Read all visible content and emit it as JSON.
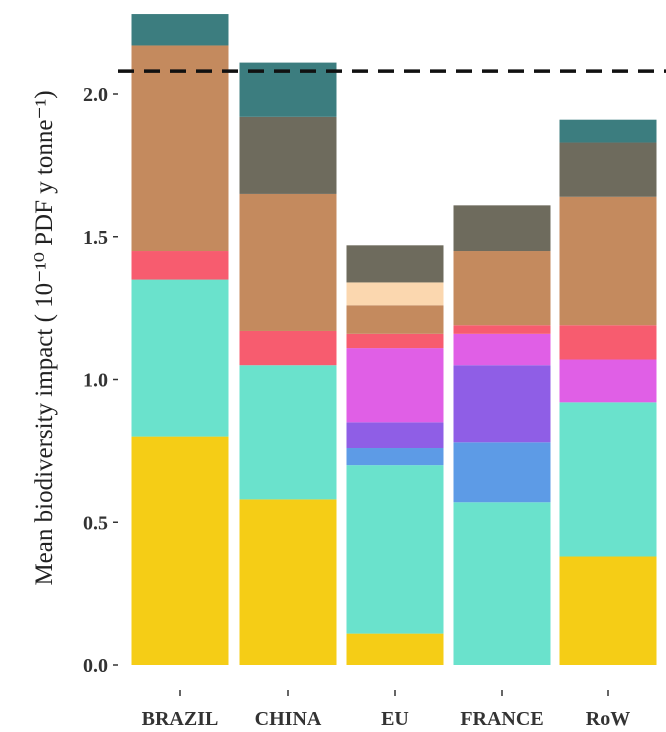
{
  "chart_data": {
    "type": "bar",
    "stacked": true,
    "categories": [
      "BRAZIL",
      "CHINA",
      "EU",
      "FRANCE",
      "RoW"
    ],
    "ylabel": "Mean biodiversity impact ( 10⁻¹⁰ PDF y tonne⁻¹)",
    "ylim": [
      0,
      2.3
    ],
    "yticks": [
      "0.0",
      "0.5",
      "1.0",
      "1.5",
      "2.0"
    ],
    "yticks_values": [
      0,
      0.5,
      1.0,
      1.5,
      2.0
    ],
    "reference_line": {
      "value": 2.08,
      "style": "dashed"
    },
    "legend": "none",
    "grid": false,
    "series": [
      {
        "color": "#f5cd16",
        "values": [
          0.8,
          0.58,
          0.11,
          0.0,
          0.38
        ]
      },
      {
        "color": "#6ae2cc",
        "values": [
          0.55,
          0.47,
          0.59,
          0.57,
          0.54
        ]
      },
      {
        "color": "#5d9be6",
        "values": [
          0.0,
          0.0,
          0.06,
          0.21,
          0.0
        ]
      },
      {
        "color": "#8f5ee6",
        "values": [
          0.0,
          0.0,
          0.09,
          0.27,
          0.0
        ]
      },
      {
        "color": "#e05fe6",
        "values": [
          0.0,
          0.0,
          0.26,
          0.11,
          0.15
        ]
      },
      {
        "color": "#f75c6f",
        "values": [
          0.1,
          0.12,
          0.05,
          0.03,
          0.12
        ]
      },
      {
        "color": "#c48a5e",
        "values": [
          0.72,
          0.48,
          0.1,
          0.26,
          0.45
        ]
      },
      {
        "color": "#fbd7af",
        "values": [
          0.0,
          0.0,
          0.08,
          0.0,
          0.0
        ]
      },
      {
        "color": "#6e6b5d",
        "values": [
          0.0,
          0.27,
          0.13,
          0.16,
          0.19
        ]
      },
      {
        "color": "#3c7d7f",
        "values": [
          0.11,
          0.19,
          0.0,
          0.0,
          0.08
        ]
      }
    ]
  }
}
